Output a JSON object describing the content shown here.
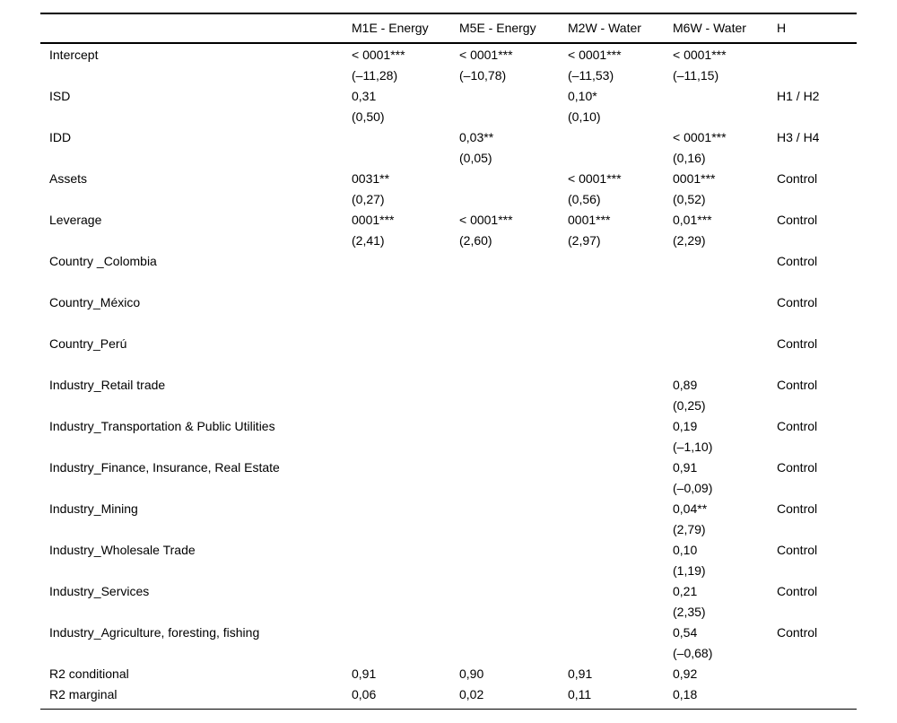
{
  "page": {
    "background": "#ffffff",
    "text_color": "#000000"
  },
  "table": {
    "columns": [
      {
        "key": "label",
        "label": ""
      },
      {
        "key": "m1e",
        "label": "M1E - Energy"
      },
      {
        "key": "m5e",
        "label": "M5E - Energy"
      },
      {
        "key": "m2w",
        "label": "M2W - Water"
      },
      {
        "key": "m6w",
        "label": "M6W - Water"
      },
      {
        "key": "h",
        "label": "H"
      }
    ],
    "rows": [
      {
        "label": "Intercept",
        "cells": [
          {
            "v": "< 0001***",
            "t": "(–11,28)"
          },
          {
            "v": "< 0001***",
            "t": "(–10,78)"
          },
          {
            "v": "< 0001***",
            "t": "(–11,53)"
          },
          {
            "v": "< 0001***",
            "t": "(–11,15)"
          }
        ],
        "h": ""
      },
      {
        "label": "ISD",
        "cells": [
          {
            "v": "0,31",
            "t": "(0,50)"
          },
          {
            "v": "",
            "t": ""
          },
          {
            "v": "0,10*",
            "t": "(0,10)"
          },
          {
            "v": "",
            "t": ""
          }
        ],
        "h": "H1 / H2"
      },
      {
        "label": "IDD",
        "cells": [
          {
            "v": "",
            "t": ""
          },
          {
            "v": "0,03**",
            "t": "(0,05)"
          },
          {
            "v": "",
            "t": ""
          },
          {
            "v": "< 0001***",
            "t": "(0,16)"
          }
        ],
        "h": "H3 / H4"
      },
      {
        "label": "Assets",
        "cells": [
          {
            "v": "0031**",
            "t": "(0,27)"
          },
          {
            "v": "",
            "t": ""
          },
          {
            "v": "< 0001***",
            "t": "(0,56)"
          },
          {
            "v": "0001***",
            "t": "(0,52)"
          }
        ],
        "h": "Control"
      },
      {
        "label": "Leverage",
        "cells": [
          {
            "v": "0001***",
            "t": "(2,41)"
          },
          {
            "v": "< 0001***",
            "t": "(2,60)"
          },
          {
            "v": "0001***",
            "t": "(2,97)"
          },
          {
            "v": "0,01***",
            "t": "(2,29)"
          }
        ],
        "h": "Control"
      },
      {
        "label": "Country _Colombia",
        "cells": [
          {
            "v": "",
            "t": ""
          },
          {
            "v": "",
            "t": ""
          },
          {
            "v": "",
            "t": ""
          },
          {
            "v": "",
            "t": ""
          }
        ],
        "h": "Control"
      },
      {
        "label": "Country_México",
        "cells": [
          {
            "v": "",
            "t": ""
          },
          {
            "v": "",
            "t": ""
          },
          {
            "v": "",
            "t": ""
          },
          {
            "v": "",
            "t": ""
          }
        ],
        "h": "Control"
      },
      {
        "label": "Country_Perú",
        "cells": [
          {
            "v": "",
            "t": ""
          },
          {
            "v": "",
            "t": ""
          },
          {
            "v": "",
            "t": ""
          },
          {
            "v": "",
            "t": ""
          }
        ],
        "h": "Control"
      },
      {
        "label": "Industry_Retail trade",
        "cells": [
          {
            "v": "",
            "t": ""
          },
          {
            "v": "",
            "t": ""
          },
          {
            "v": "",
            "t": ""
          },
          {
            "v": "0,89",
            "t": "(0,25)"
          }
        ],
        "h": "Control"
      },
      {
        "label": "Industry_Transportation & Public Utilities",
        "cells": [
          {
            "v": "",
            "t": ""
          },
          {
            "v": "",
            "t": ""
          },
          {
            "v": "",
            "t": ""
          },
          {
            "v": "0,19",
            "t": "(–1,10)"
          }
        ],
        "h": "Control"
      },
      {
        "label": "Industry_Finance, Insurance, Real Estate",
        "cells": [
          {
            "v": "",
            "t": ""
          },
          {
            "v": "",
            "t": ""
          },
          {
            "v": "",
            "t": ""
          },
          {
            "v": "0,91",
            "t": "(–0,09)"
          }
        ],
        "h": "Control"
      },
      {
        "label": "Industry_Mining",
        "cells": [
          {
            "v": "",
            "t": ""
          },
          {
            "v": "",
            "t": ""
          },
          {
            "v": "",
            "t": ""
          },
          {
            "v": "0,04**",
            "t": "(2,79)"
          }
        ],
        "h": "Control"
      },
      {
        "label": "Industry_Wholesale Trade",
        "cells": [
          {
            "v": "",
            "t": ""
          },
          {
            "v": "",
            "t": ""
          },
          {
            "v": "",
            "t": ""
          },
          {
            "v": "0,10",
            "t": "(1,19)"
          }
        ],
        "h": "Control"
      },
      {
        "label": "Industry_Services",
        "cells": [
          {
            "v": "",
            "t": ""
          },
          {
            "v": "",
            "t": ""
          },
          {
            "v": "",
            "t": ""
          },
          {
            "v": "0,21",
            "t": "(2,35)"
          }
        ],
        "h": "Control"
      },
      {
        "label": "Industry_Agriculture, foresting, fishing",
        "cells": [
          {
            "v": "",
            "t": ""
          },
          {
            "v": "",
            "t": ""
          },
          {
            "v": "",
            "t": ""
          },
          {
            "v": "0,54",
            "t": "(–0,68)"
          }
        ],
        "h": "Control"
      },
      {
        "label": "R2 conditional",
        "single": true,
        "cells": [
          {
            "v": "0,91"
          },
          {
            "v": "0,90"
          },
          {
            "v": "0,91"
          },
          {
            "v": "0,92"
          }
        ],
        "h": ""
      },
      {
        "label": "R2 marginal",
        "single": true,
        "cells": [
          {
            "v": "0,06"
          },
          {
            "v": "0,02"
          },
          {
            "v": "0,11"
          },
          {
            "v": "0,18"
          }
        ],
        "h": ""
      }
    ]
  }
}
